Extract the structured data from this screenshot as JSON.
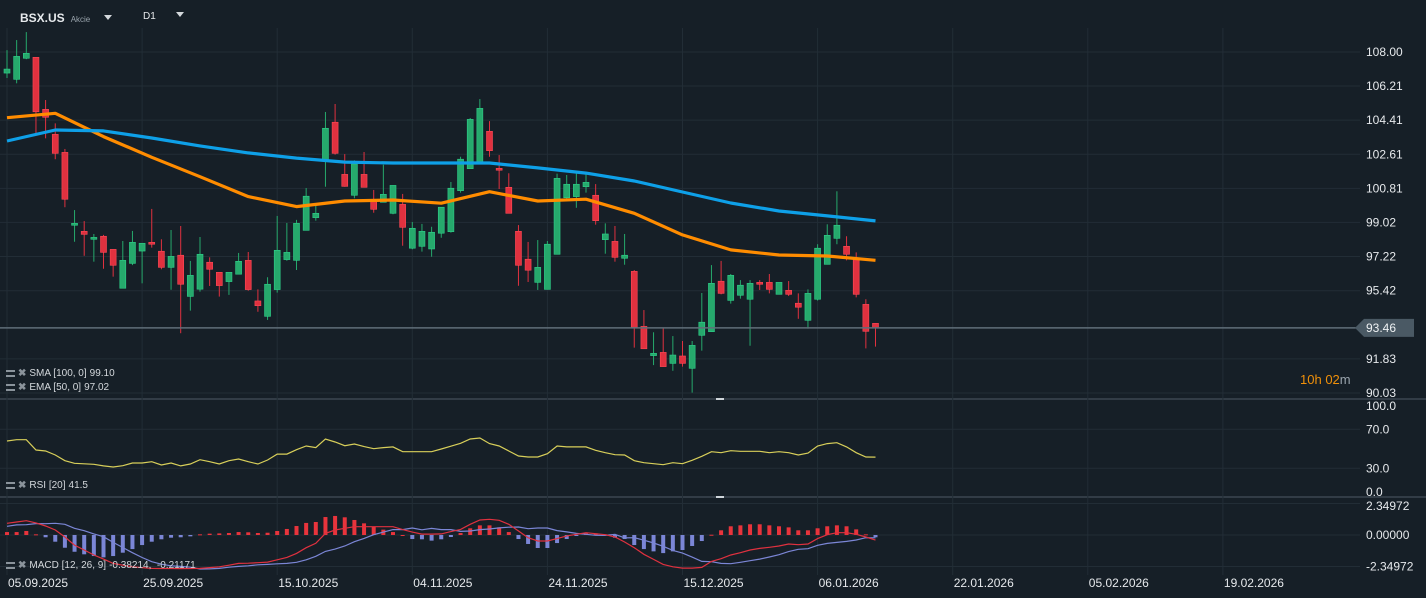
{
  "header": {
    "symbol": "BSX.US",
    "asset_type": "Akcie",
    "timeframe": "D1"
  },
  "countdown": {
    "hours": "10h",
    "minutes": "02",
    "minutes_unit": "m"
  },
  "colors": {
    "background": "#161f27",
    "up": "#26a96c",
    "down": "#e0313f",
    "sma": "#0ea0e8",
    "ema": "#ff8c00",
    "rsi": "#d8cf5a",
    "macd": "#e0313f",
    "signal": "#7b86d6",
    "hist_pos": "#e8343c",
    "hist_neg": "#7b86d6",
    "price_label_bg": "#4a5964"
  },
  "legends": {
    "sma": {
      "label": "SMA [100, 0]",
      "value": "99.10"
    },
    "ema": {
      "label": "EMA [50, 0]",
      "value": "97.02"
    },
    "rsi": {
      "label": "RSI [20]",
      "value": "41.5"
    },
    "macd": {
      "label": "MACD [12, 26, 9]",
      "value": "-0.38214,  -0.21171"
    }
  },
  "chart_data": [
    {
      "type": "candlestick",
      "price_axis_ticks": [
        "108.00",
        "106.21",
        "104.41",
        "102.61",
        "100.81",
        "99.02",
        "97.22",
        "95.42",
        "91.83",
        "90.03"
      ],
      "last_price": "93.46",
      "ylim": [
        90.03,
        108.0
      ],
      "x_tick_labels": [
        "05.09.2025",
        "25.09.2025",
        "15.10.2025",
        "04.11.2025",
        "24.11.2025",
        "15.12.2025",
        "06.01.2026",
        "22.01.2026",
        "05.02.2026",
        "19.02.2026"
      ],
      "grid": true,
      "dates": [
        "2025-09-05",
        "2025-09-08",
        "2025-09-09",
        "2025-09-10",
        "2025-09-11",
        "2025-09-12",
        "2025-09-15",
        "2025-09-16",
        "2025-09-17",
        "2025-09-18",
        "2025-09-19",
        "2025-09-22",
        "2025-09-23",
        "2025-09-24",
        "2025-09-25",
        "2025-09-26",
        "2025-09-29",
        "2025-09-30",
        "2025-10-01",
        "2025-10-02",
        "2025-10-03",
        "2025-10-06",
        "2025-10-07",
        "2025-10-08",
        "2025-10-09",
        "2025-10-10",
        "2025-10-13",
        "2025-10-14",
        "2025-10-15",
        "2025-10-16",
        "2025-10-17",
        "2025-10-20",
        "2025-10-21",
        "2025-10-22",
        "2025-10-23",
        "2025-10-24",
        "2025-10-27",
        "2025-10-28",
        "2025-10-29",
        "2025-10-30",
        "2025-10-31",
        "2025-11-03",
        "2025-11-04",
        "2025-11-05",
        "2025-11-06",
        "2025-11-07",
        "2025-11-10",
        "2025-11-11",
        "2025-11-12",
        "2025-11-13",
        "2025-11-14",
        "2025-11-17",
        "2025-11-18",
        "2025-11-19",
        "2025-11-20",
        "2025-11-21",
        "2025-11-24",
        "2025-11-25",
        "2025-11-26",
        "2025-11-28",
        "2025-12-01",
        "2025-12-02",
        "2025-12-03",
        "2025-12-04",
        "2025-12-05",
        "2025-12-08",
        "2025-12-09",
        "2025-12-10",
        "2025-12-11",
        "2025-12-12",
        "2025-12-15",
        "2025-12-16",
        "2025-12-17",
        "2025-12-18",
        "2025-12-19",
        "2025-12-22",
        "2025-12-23",
        "2025-12-24",
        "2025-12-26",
        "2025-12-29",
        "2025-12-30",
        "2025-12-31",
        "2026-01-02",
        "2026-01-05",
        "2026-01-06",
        "2026-01-07",
        "2026-01-08",
        "2026-01-09",
        "2026-01-12",
        "2026-01-13",
        "2026-01-14"
      ],
      "ohlc": [
        [
          106.89,
          108.1,
          106.63,
          107.1
        ],
        [
          106.56,
          108.63,
          106.35,
          107.77
        ],
        [
          107.67,
          109.05,
          107.62,
          107.93
        ],
        [
          107.72,
          107.72,
          103.72,
          104.85
        ],
        [
          104.98,
          105.47,
          103.45,
          104.56
        ],
        [
          103.66,
          104.24,
          102.35,
          102.66
        ],
        [
          102.71,
          102.89,
          99.82,
          100.24
        ],
        [
          98.87,
          99.67,
          98.0,
          98.97
        ],
        [
          98.55,
          99.09,
          97.26,
          98.39
        ],
        [
          98.13,
          98.41,
          96.95,
          98.23
        ],
        [
          98.29,
          98.36,
          96.58,
          97.44
        ],
        [
          97.6,
          97.6,
          96.16,
          96.76
        ],
        [
          95.55,
          98.04,
          95.55,
          97.02
        ],
        [
          96.86,
          98.57,
          96.77,
          97.97
        ],
        [
          97.51,
          97.92,
          95.81,
          97.92
        ],
        [
          97.97,
          99.73,
          97.69,
          97.87
        ],
        [
          97.5,
          98.13,
          96.55,
          96.65
        ],
        [
          96.65,
          98.62,
          95.47,
          97.23
        ],
        [
          97.29,
          98.83,
          93.18,
          95.76
        ],
        [
          95.12,
          96.99,
          94.37,
          96.23
        ],
        [
          95.5,
          98.25,
          95.37,
          97.34
        ],
        [
          96.92,
          97.18,
          95.67,
          96.55
        ],
        [
          96.39,
          96.39,
          95.11,
          95.69
        ],
        [
          95.9,
          96.39,
          95.2,
          96.39
        ],
        [
          96.29,
          97.41,
          96.29,
          96.97
        ],
        [
          97.02,
          97.46,
          95.42,
          95.48
        ],
        [
          94.88,
          95.49,
          94.31,
          94.63
        ],
        [
          94.07,
          96.13,
          93.88,
          95.76
        ],
        [
          95.48,
          99.36,
          95.32,
          97.55
        ],
        [
          97.06,
          98.99,
          97.0,
          97.44
        ],
        [
          97.02,
          99.15,
          96.51,
          98.97
        ],
        [
          98.6,
          100.83,
          98.6,
          100.4
        ],
        [
          99.27,
          100.03,
          99.11,
          99.5
        ],
        [
          102.27,
          104.84,
          100.9,
          103.98
        ],
        [
          104.3,
          105.26,
          102.59,
          102.66
        ],
        [
          101.55,
          102.62,
          100.9,
          100.92
        ],
        [
          100.45,
          102.29,
          100.29,
          102.1
        ],
        [
          101.55,
          102.73,
          100.87,
          100.87
        ],
        [
          100.13,
          100.73,
          99.53,
          99.71
        ],
        [
          100.08,
          102.06,
          100.08,
          100.5
        ],
        [
          99.5,
          100.97,
          99.45,
          100.97
        ],
        [
          99.97,
          100.52,
          97.79,
          98.76
        ],
        [
          97.66,
          99.04,
          97.6,
          98.71
        ],
        [
          97.76,
          98.94,
          97.48,
          98.55
        ],
        [
          97.62,
          98.79,
          97.21,
          98.5
        ],
        [
          98.45,
          99.82,
          98.21,
          99.82
        ],
        [
          98.53,
          101.15,
          98.48,
          100.82
        ],
        [
          100.69,
          102.48,
          100.59,
          102.35
        ],
        [
          101.85,
          104.52,
          101.85,
          104.45
        ],
        [
          102.17,
          105.52,
          102.17,
          105.03
        ],
        [
          103.82,
          104.36,
          102.48,
          102.8
        ],
        [
          101.87,
          102.57,
          100.78,
          101.77
        ],
        [
          100.87,
          101.61,
          99.5,
          99.5
        ],
        [
          98.55,
          98.88,
          95.68,
          96.76
        ],
        [
          97.08,
          97.99,
          95.88,
          96.5
        ],
        [
          95.86,
          98.09,
          95.46,
          96.65
        ],
        [
          95.49,
          98.04,
          95.49,
          97.87
        ],
        [
          97.34,
          101.59,
          97.34,
          101.34
        ],
        [
          100.32,
          101.52,
          100.2,
          101.03
        ],
        [
          100.38,
          101.61,
          99.79,
          101.03
        ],
        [
          100.9,
          101.61,
          100.59,
          101.13
        ],
        [
          100.45,
          101.04,
          98.9,
          99.11
        ],
        [
          98.11,
          98.97,
          97.37,
          98.41
        ],
        [
          98.02,
          98.83,
          96.95,
          97.18
        ],
        [
          97.13,
          98.41,
          96.79,
          97.29
        ],
        [
          96.44,
          96.51,
          92.42,
          93.49
        ],
        [
          93.54,
          94.4,
          92.36,
          92.36
        ],
        [
          92.0,
          93.23,
          91.5,
          92.12
        ],
        [
          92.17,
          93.45,
          91.42,
          91.42
        ],
        [
          91.59,
          93.03,
          91.2,
          92.03
        ],
        [
          91.98,
          92.77,
          91.42,
          91.59
        ],
        [
          91.33,
          92.77,
          90.05,
          92.54
        ],
        [
          93.07,
          95.3,
          92.26,
          93.76
        ],
        [
          93.26,
          96.77,
          93.26,
          95.81
        ],
        [
          95.92,
          96.99,
          95.23,
          95.28
        ],
        [
          94.91,
          96.3,
          94.74,
          96.23
        ],
        [
          95.18,
          95.98,
          95.0,
          95.71
        ],
        [
          94.97,
          95.98,
          92.52,
          95.81
        ],
        [
          95.86,
          95.98,
          95.46,
          95.76
        ],
        [
          95.86,
          96.3,
          95.28,
          95.49
        ],
        [
          95.23,
          95.86,
          95.23,
          95.86
        ],
        [
          95.44,
          95.93,
          95.14,
          95.23
        ],
        [
          94.76,
          95.28,
          93.94,
          94.55
        ],
        [
          93.86,
          95.49,
          93.42,
          95.28
        ],
        [
          94.97,
          97.87,
          94.9,
          97.66
        ],
        [
          96.81,
          98.92,
          96.81,
          98.34
        ],
        [
          98.18,
          100.66,
          97.87,
          98.87
        ],
        [
          97.76,
          98.29,
          97.02,
          97.34
        ],
        [
          97.08,
          97.44,
          95.07,
          95.23
        ],
        [
          94.7,
          94.97,
          92.38,
          93.28
        ],
        [
          93.7,
          93.7,
          92.47,
          93.46
        ]
      ],
      "overlays": [
        {
          "name": "SMA [100, 0]",
          "points": [
            [
              "2025-09-05",
              103.31
            ],
            [
              "2025-09-12",
              103.89
            ],
            [
              "2025-09-19",
              103.84
            ],
            [
              "2025-09-26",
              103.47
            ],
            [
              "2025-10-03",
              103.05
            ],
            [
              "2025-10-10",
              102.68
            ],
            [
              "2025-10-17",
              102.41
            ],
            [
              "2025-10-24",
              102.2
            ],
            [
              "2025-10-31",
              102.15
            ],
            [
              "2025-11-07",
              102.15
            ],
            [
              "2025-11-14",
              102.15
            ],
            [
              "2025-11-21",
              101.89
            ],
            [
              "2025-12-01",
              101.62
            ],
            [
              "2025-12-08",
              101.2
            ],
            [
              "2025-12-15",
              100.62
            ],
            [
              "2025-12-22",
              100.04
            ],
            [
              "2025-12-30",
              99.62
            ],
            [
              "2026-01-07",
              99.36
            ],
            [
              "2026-01-14",
              99.1
            ]
          ]
        },
        {
          "name": "EMA [50, 0]",
          "points": [
            [
              "2025-09-05",
              104.54
            ],
            [
              "2025-09-12",
              104.77
            ],
            [
              "2025-09-19",
              103.54
            ],
            [
              "2025-09-26",
              102.45
            ],
            [
              "2025-10-03",
              101.43
            ],
            [
              "2025-10-10",
              100.38
            ],
            [
              "2025-10-17",
              99.85
            ],
            [
              "2025-10-24",
              100.15
            ],
            [
              "2025-10-31",
              100.2
            ],
            [
              "2025-11-07",
              100.03
            ],
            [
              "2025-11-14",
              100.64
            ],
            [
              "2025-11-21",
              100.15
            ],
            [
              "2025-12-01",
              100.24
            ],
            [
              "2025-12-08",
              99.5
            ],
            [
              "2025-12-15",
              98.36
            ],
            [
              "2025-12-22",
              97.57
            ],
            [
              "2025-12-30",
              97.3
            ],
            [
              "2026-01-07",
              97.25
            ],
            [
              "2026-01-14",
              97.02
            ]
          ]
        }
      ]
    },
    {
      "type": "line",
      "name": "RSI [20]",
      "ylim": [
        0,
        100
      ],
      "y_tick_labels": [
        "100.0",
        "70.0",
        "30.0",
        "0.0"
      ],
      "values": [
        58.0,
        59.3,
        59.3,
        48.8,
        47.7,
        43.6,
        37.8,
        35.1,
        34.6,
        34.1,
        32.4,
        31.3,
        32.7,
        35.4,
        35.4,
        36.8,
        33.4,
        35.4,
        32.4,
        34.4,
        38.8,
        36.8,
        34.4,
        37.8,
        39.5,
        36.8,
        34.4,
        38.5,
        44.6,
        44.6,
        49.1,
        52.9,
        51.2,
        60.0,
        57.0,
        53.2,
        54.9,
        52.2,
        50.1,
        51.2,
        51.9,
        47.0,
        47.0,
        47.0,
        47.0,
        49.8,
        52.7,
        55.6,
        60.0,
        61.1,
        55.3,
        52.9,
        47.7,
        42.6,
        41.6,
        41.6,
        45.0,
        52.9,
        51.9,
        51.9,
        51.9,
        48.5,
        46.0,
        43.9,
        43.6,
        37.8,
        35.7,
        34.7,
        33.7,
        35.7,
        34.7,
        38.2,
        42.3,
        47.0,
        46.0,
        48.0,
        47.4,
        47.4,
        47.4,
        46.0,
        47.0,
        46.0,
        43.6,
        45.6,
        52.9,
        55.3,
        56.3,
        51.9,
        46.0,
        41.6,
        41.5
      ]
    },
    {
      "type": "macd",
      "name": "MACD [12, 26, 9]",
      "ylim": [
        -2.34972,
        2.34972
      ],
      "y_tick_labels": [
        "2.34972",
        "0.00000",
        "-2.34972"
      ],
      "macd": [
        0.87,
        0.97,
        1.07,
        0.9,
        0.67,
        0.37,
        -0.15,
        -0.75,
        -1.12,
        -1.49,
        -1.8,
        -2.12,
        -2.25,
        -2.37,
        -2.43,
        -2.49,
        -2.5,
        -2.5,
        -2.51,
        -2.5,
        -2.49,
        -2.43,
        -2.37,
        -2.25,
        -2.12,
        -2.1,
        -2.07,
        -2.02,
        -1.85,
        -1.67,
        -1.37,
        -0.95,
        -0.62,
        0.12,
        0.37,
        0.5,
        0.62,
        0.62,
        0.62,
        0.62,
        0.62,
        0.4,
        0.22,
        0.07,
        0.07,
        0.08,
        0.25,
        0.42,
        0.8,
        1.12,
        1.17,
        1.1,
        0.8,
        0.3,
        -0.2,
        -0.45,
        -0.45,
        -0.27,
        -0.07,
        0.05,
        0.17,
        0.1,
        0.02,
        -0.15,
        -0.52,
        -0.95,
        -1.44,
        -1.82,
        -2.19,
        -2.37,
        -2.47,
        -2.47,
        -2.42,
        -1.97,
        -1.77,
        -1.49,
        -1.32,
        -1.12,
        -1.0,
        -0.92,
        -0.82,
        -0.67,
        -0.72,
        -0.67,
        -0.27,
        0.02,
        0.17,
        0.17,
        0.05,
        -0.15,
        -0.38214
      ],
      "histogram": [
        0.22,
        0.22,
        0.3,
        0.05,
        -0.17,
        -0.5,
        -0.95,
        -1.25,
        -1.44,
        -1.57,
        -1.67,
        -1.57,
        -1.32,
        -1.05,
        -0.75,
        -0.5,
        -0.32,
        -0.2,
        -0.17,
        -0.1,
        0.05,
        0.1,
        0.12,
        0.15,
        0.22,
        0.2,
        0.15,
        0.17,
        0.3,
        0.45,
        0.67,
        0.9,
        0.97,
        1.34,
        1.42,
        1.32,
        1.12,
        0.87,
        0.6,
        0.4,
        0.22,
        0.0,
        -0.3,
        -0.32,
        -0.42,
        -0.32,
        -0.15,
        0.15,
        0.5,
        0.72,
        0.72,
        0.57,
        0.22,
        -0.3,
        -0.67,
        -0.97,
        -0.97,
        -0.6,
        -0.3,
        -0.07,
        0.12,
        0.12,
        0.05,
        -0.2,
        -0.3,
        -0.75,
        -1.05,
        -1.22,
        -1.35,
        -1.22,
        -1.12,
        -0.82,
        -0.45,
        0.02,
        0.35,
        0.65,
        0.72,
        0.8,
        0.8,
        0.72,
        0.65,
        0.57,
        0.35,
        0.35,
        0.5,
        0.65,
        0.72,
        0.65,
        0.42,
        0.05,
        -0.17
      ]
    }
  ]
}
